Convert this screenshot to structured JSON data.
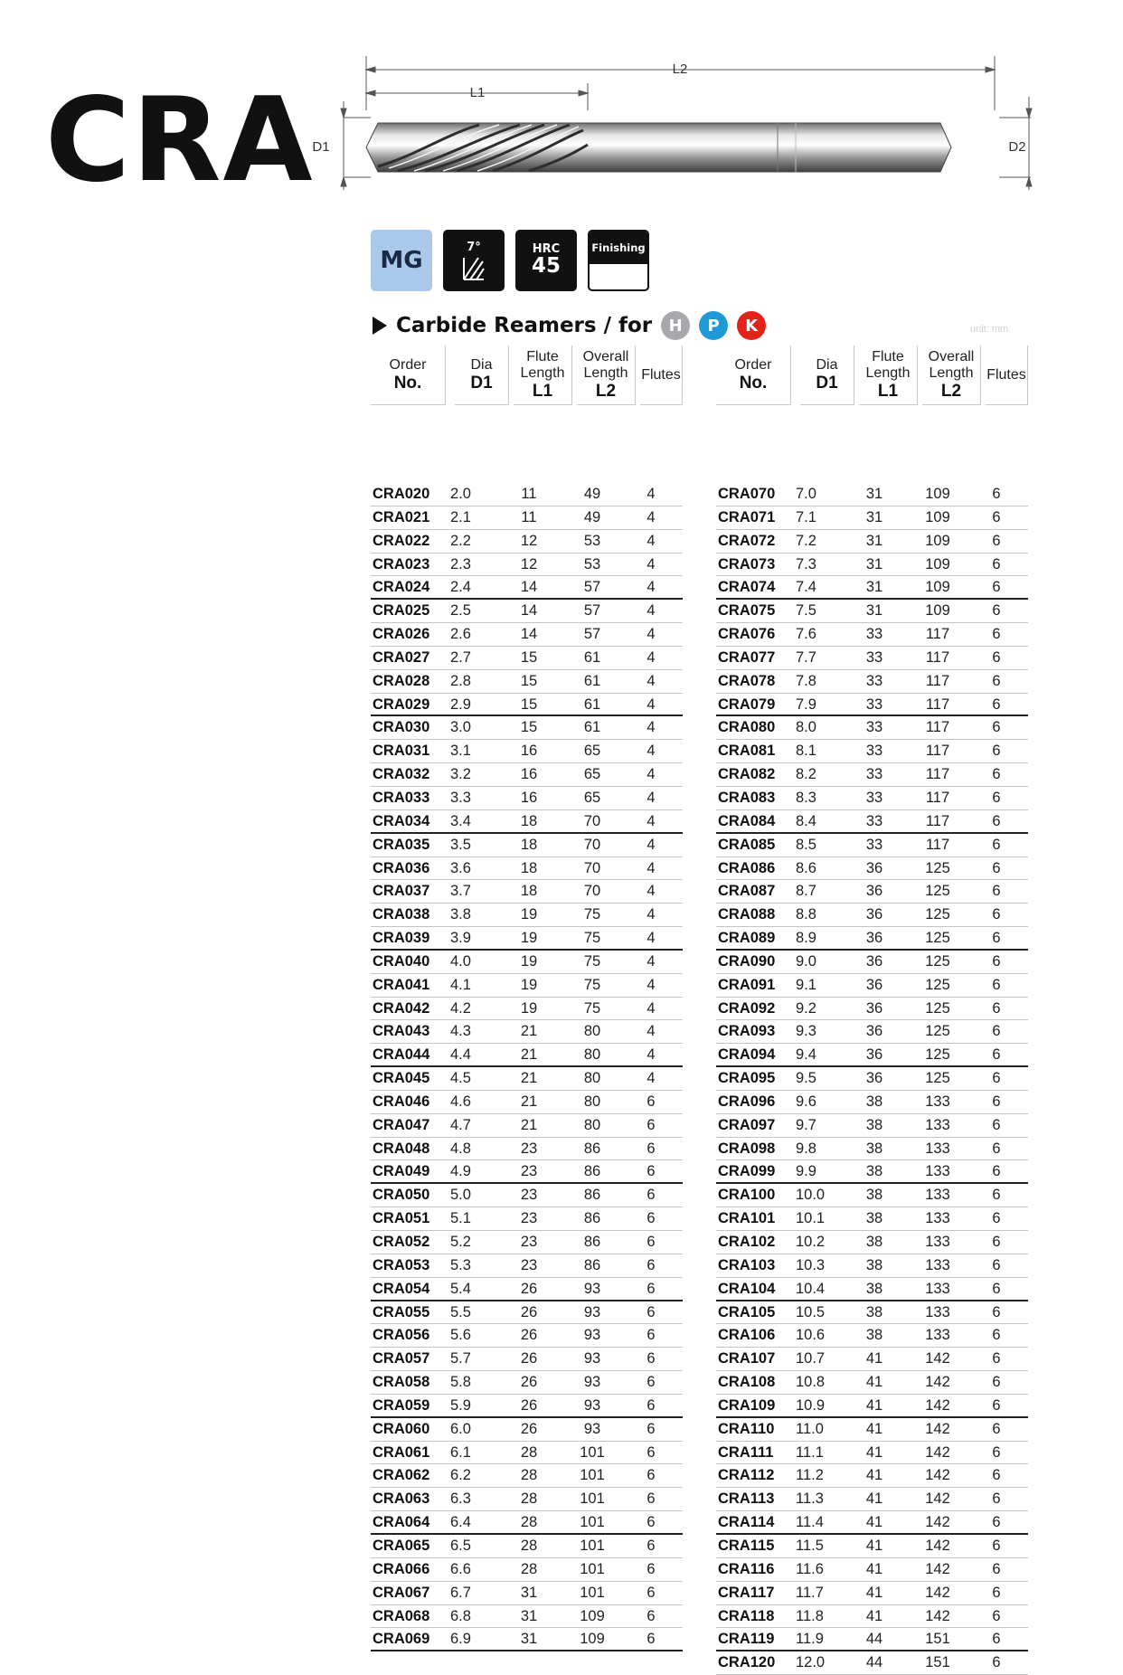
{
  "brand": "CRA",
  "diagram": {
    "labels": {
      "l2": "L2",
      "l1": "L1",
      "d1": "D1",
      "d2": "D2"
    }
  },
  "badges": {
    "mg": "MG",
    "angle": "7°",
    "hrc_top": "HRC",
    "hrc_value": "45",
    "finishing": "Finishing"
  },
  "section": {
    "title": "Carbide Reamers / for",
    "materials": [
      {
        "letter": "H",
        "color": "#a7a9ac"
      },
      {
        "letter": "P",
        "color": "#1e9ad6"
      },
      {
        "letter": "K",
        "color": "#e2231a"
      }
    ],
    "unit": "unit: mm"
  },
  "columns": {
    "order": [
      "Order",
      "No."
    ],
    "dia": [
      "Dia",
      "D1"
    ],
    "flute": [
      "Flute",
      "Length",
      "L1"
    ],
    "overall": [
      "Overall",
      "Length",
      "L2"
    ],
    "flutes": "Flutes"
  },
  "tables": [
    {
      "rows": [
        [
          "CRA020",
          "2.0",
          "11",
          "49",
          "4"
        ],
        [
          "CRA021",
          "2.1",
          "11",
          "49",
          "4"
        ],
        [
          "CRA022",
          "2.2",
          "12",
          "53",
          "4"
        ],
        [
          "CRA023",
          "2.3",
          "12",
          "53",
          "4"
        ],
        [
          "CRA024",
          "2.4",
          "14",
          "57",
          "4"
        ],
        [
          "CRA025",
          "2.5",
          "14",
          "57",
          "4"
        ],
        [
          "CRA026",
          "2.6",
          "14",
          "57",
          "4"
        ],
        [
          "CRA027",
          "2.7",
          "15",
          "61",
          "4"
        ],
        [
          "CRA028",
          "2.8",
          "15",
          "61",
          "4"
        ],
        [
          "CRA029",
          "2.9",
          "15",
          "61",
          "4"
        ],
        [
          "CRA030",
          "3.0",
          "15",
          "61",
          "4"
        ],
        [
          "CRA031",
          "3.1",
          "16",
          "65",
          "4"
        ],
        [
          "CRA032",
          "3.2",
          "16",
          "65",
          "4"
        ],
        [
          "CRA033",
          "3.3",
          "16",
          "65",
          "4"
        ],
        [
          "CRA034",
          "3.4",
          "18",
          "70",
          "4"
        ],
        [
          "CRA035",
          "3.5",
          "18",
          "70",
          "4"
        ],
        [
          "CRA036",
          "3.6",
          "18",
          "70",
          "4"
        ],
        [
          "CRA037",
          "3.7",
          "18",
          "70",
          "4"
        ],
        [
          "CRA038",
          "3.8",
          "19",
          "75",
          "4"
        ],
        [
          "CRA039",
          "3.9",
          "19",
          "75",
          "4"
        ],
        [
          "CRA040",
          "4.0",
          "19",
          "75",
          "4"
        ],
        [
          "CRA041",
          "4.1",
          "19",
          "75",
          "4"
        ],
        [
          "CRA042",
          "4.2",
          "19",
          "75",
          "4"
        ],
        [
          "CRA043",
          "4.3",
          "21",
          "80",
          "4"
        ],
        [
          "CRA044",
          "4.4",
          "21",
          "80",
          "4"
        ],
        [
          "CRA045",
          "4.5",
          "21",
          "80",
          "4"
        ],
        [
          "CRA046",
          "4.6",
          "21",
          "80",
          "6"
        ],
        [
          "CRA047",
          "4.7",
          "21",
          "80",
          "6"
        ],
        [
          "CRA048",
          "4.8",
          "23",
          "86",
          "6"
        ],
        [
          "CRA049",
          "4.9",
          "23",
          "86",
          "6"
        ],
        [
          "CRA050",
          "5.0",
          "23",
          "86",
          "6"
        ],
        [
          "CRA051",
          "5.1",
          "23",
          "86",
          "6"
        ],
        [
          "CRA052",
          "5.2",
          "23",
          "86",
          "6"
        ],
        [
          "CRA053",
          "5.3",
          "23",
          "86",
          "6"
        ],
        [
          "CRA054",
          "5.4",
          "26",
          "93",
          "6"
        ],
        [
          "CRA055",
          "5.5",
          "26",
          "93",
          "6"
        ],
        [
          "CRA056",
          "5.6",
          "26",
          "93",
          "6"
        ],
        [
          "CRA057",
          "5.7",
          "26",
          "93",
          "6"
        ],
        [
          "CRA058",
          "5.8",
          "26",
          "93",
          "6"
        ],
        [
          "CRA059",
          "5.9",
          "26",
          "93",
          "6"
        ],
        [
          "CRA060",
          "6.0",
          "26",
          "93",
          "6"
        ],
        [
          "CRA061",
          "6.1",
          "28",
          "101",
          "6"
        ],
        [
          "CRA062",
          "6.2",
          "28",
          "101",
          "6"
        ],
        [
          "CRA063",
          "6.3",
          "28",
          "101",
          "6"
        ],
        [
          "CRA064",
          "6.4",
          "28",
          "101",
          "6"
        ],
        [
          "CRA065",
          "6.5",
          "28",
          "101",
          "6"
        ],
        [
          "CRA066",
          "6.6",
          "28",
          "101",
          "6"
        ],
        [
          "CRA067",
          "6.7",
          "31",
          "101",
          "6"
        ],
        [
          "CRA068",
          "6.8",
          "31",
          "109",
          "6"
        ],
        [
          "CRA069",
          "6.9",
          "31",
          "109",
          "6"
        ]
      ]
    },
    {
      "rows": [
        [
          "CRA070",
          "7.0",
          "31",
          "109",
          "6"
        ],
        [
          "CRA071",
          "7.1",
          "31",
          "109",
          "6"
        ],
        [
          "CRA072",
          "7.2",
          "31",
          "109",
          "6"
        ],
        [
          "CRA073",
          "7.3",
          "31",
          "109",
          "6"
        ],
        [
          "CRA074",
          "7.4",
          "31",
          "109",
          "6"
        ],
        [
          "CRA075",
          "7.5",
          "31",
          "109",
          "6"
        ],
        [
          "CRA076",
          "7.6",
          "33",
          "117",
          "6"
        ],
        [
          "CRA077",
          "7.7",
          "33",
          "117",
          "6"
        ],
        [
          "CRA078",
          "7.8",
          "33",
          "117",
          "6"
        ],
        [
          "CRA079",
          "7.9",
          "33",
          "117",
          "6"
        ],
        [
          "CRA080",
          "8.0",
          "33",
          "117",
          "6"
        ],
        [
          "CRA081",
          "8.1",
          "33",
          "117",
          "6"
        ],
        [
          "CRA082",
          "8.2",
          "33",
          "117",
          "6"
        ],
        [
          "CRA083",
          "8.3",
          "33",
          "117",
          "6"
        ],
        [
          "CRA084",
          "8.4",
          "33",
          "117",
          "6"
        ],
        [
          "CRA085",
          "8.5",
          "33",
          "117",
          "6"
        ],
        [
          "CRA086",
          "8.6",
          "36",
          "125",
          "6"
        ],
        [
          "CRA087",
          "8.7",
          "36",
          "125",
          "6"
        ],
        [
          "CRA088",
          "8.8",
          "36",
          "125",
          "6"
        ],
        [
          "CRA089",
          "8.9",
          "36",
          "125",
          "6"
        ],
        [
          "CRA090",
          "9.0",
          "36",
          "125",
          "6"
        ],
        [
          "CRA091",
          "9.1",
          "36",
          "125",
          "6"
        ],
        [
          "CRA092",
          "9.2",
          "36",
          "125",
          "6"
        ],
        [
          "CRA093",
          "9.3",
          "36",
          "125",
          "6"
        ],
        [
          "CRA094",
          "9.4",
          "36",
          "125",
          "6"
        ],
        [
          "CRA095",
          "9.5",
          "36",
          "125",
          "6"
        ],
        [
          "CRA096",
          "9.6",
          "38",
          "133",
          "6"
        ],
        [
          "CRA097",
          "9.7",
          "38",
          "133",
          "6"
        ],
        [
          "CRA098",
          "9.8",
          "38",
          "133",
          "6"
        ],
        [
          "CRA099",
          "9.9",
          "38",
          "133",
          "6"
        ],
        [
          "CRA100",
          "10.0",
          "38",
          "133",
          "6"
        ],
        [
          "CRA101",
          "10.1",
          "38",
          "133",
          "6"
        ],
        [
          "CRA102",
          "10.2",
          "38",
          "133",
          "6"
        ],
        [
          "CRA103",
          "10.3",
          "38",
          "133",
          "6"
        ],
        [
          "CRA104",
          "10.4",
          "38",
          "133",
          "6"
        ],
        [
          "CRA105",
          "10.5",
          "38",
          "133",
          "6"
        ],
        [
          "CRA106",
          "10.6",
          "38",
          "133",
          "6"
        ],
        [
          "CRA107",
          "10.7",
          "41",
          "142",
          "6"
        ],
        [
          "CRA108",
          "10.8",
          "41",
          "142",
          "6"
        ],
        [
          "CRA109",
          "10.9",
          "41",
          "142",
          "6"
        ],
        [
          "CRA110",
          "11.0",
          "41",
          "142",
          "6"
        ],
        [
          "CRA111",
          "11.1",
          "41",
          "142",
          "6"
        ],
        [
          "CRA112",
          "11.2",
          "41",
          "142",
          "6"
        ],
        [
          "CRA113",
          "11.3",
          "41",
          "142",
          "6"
        ],
        [
          "CRA114",
          "11.4",
          "41",
          "142",
          "6"
        ],
        [
          "CRA115",
          "11.5",
          "41",
          "142",
          "6"
        ],
        [
          "CRA116",
          "11.6",
          "41",
          "142",
          "6"
        ],
        [
          "CRA117",
          "11.7",
          "41",
          "142",
          "6"
        ],
        [
          "CRA118",
          "11.8",
          "41",
          "142",
          "6"
        ],
        [
          "CRA119",
          "11.9",
          "44",
          "151",
          "6"
        ],
        [
          "CRA120",
          "12.0",
          "44",
          "151",
          "6"
        ]
      ]
    }
  ]
}
